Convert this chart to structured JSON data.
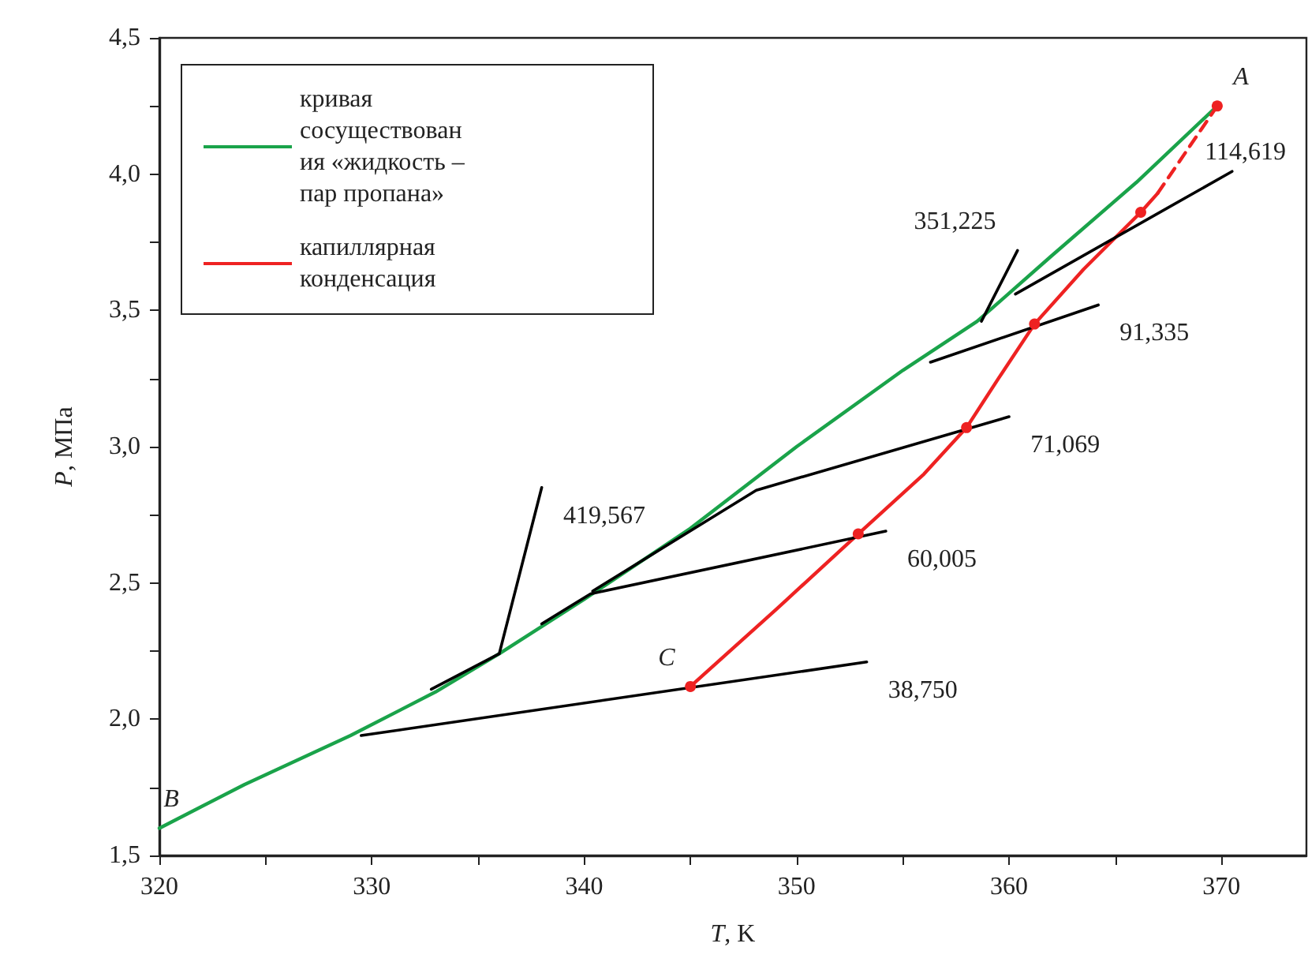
{
  "chart_data": {
    "type": "line",
    "xlabel": "T, K",
    "ylabel": "P, МПа",
    "xlim": [
      320,
      374
    ],
    "ylim": [
      1.5,
      4.5
    ],
    "xticks": [
      320,
      {
        "value": 325,
        "label": null
      },
      330,
      {
        "value": 335,
        "label": null
      },
      340,
      {
        "value": 345,
        "label": null
      },
      350,
      {
        "value": 355,
        "label": null
      },
      360,
      {
        "value": 365,
        "label": null
      },
      370
    ],
    "yticks": [
      {
        "value": 1.5,
        "label": "1,5"
      },
      {
        "value": 1.75,
        "label": null
      },
      {
        "value": 2.0,
        "label": "2,0"
      },
      {
        "value": 2.25,
        "label": null
      },
      {
        "value": 2.5,
        "label": "2,5"
      },
      {
        "value": 2.75,
        "label": null
      },
      {
        "value": 3.0,
        "label": "3,0"
      },
      {
        "value": 3.25,
        "label": null
      },
      {
        "value": 3.5,
        "label": "3,5"
      },
      {
        "value": 3.75,
        "label": null
      },
      {
        "value": 4.0,
        "label": "4,0"
      },
      {
        "value": 4.25,
        "label": null
      },
      {
        "value": 4.5,
        "label": "4,5"
      }
    ],
    "legend": "top left",
    "grid": false,
    "marker": "none",
    "line_style": "solid",
    "series": [
      {
        "name": "кривая сосуществования «жидкость – пар пропана»",
        "color": "#1aa34a",
        "x": [
          320,
          324,
          329,
          333,
          336,
          340,
          345,
          350,
          355,
          358.5,
          362,
          366,
          369.8
        ],
        "values": [
          1.6,
          1.76,
          1.94,
          2.1,
          2.24,
          2.44,
          2.7,
          3.0,
          3.28,
          3.46,
          3.7,
          3.97,
          4.25
        ]
      },
      {
        "name": "капиллярная конденсация",
        "color": "#ee2222",
        "x": [
          345,
          349,
          352.9,
          356,
          358,
          359.5,
          361.2,
          363.5,
          366.2,
          367
        ],
        "values": [
          2.12,
          2.4,
          2.68,
          2.9,
          3.07,
          3.25,
          3.45,
          3.65,
          3.86,
          3.93
        ]
      },
      {
        "color": "#ee2222",
        "line_style": "dashed",
        "x": [
          367,
          369.8
        ],
        "values": [
          3.93,
          4.25
        ]
      },
      {
        "type": "scatter",
        "marker": "circle",
        "color": "#ee2222",
        "x": [
          345,
          352.9,
          358,
          361.2,
          366.2,
          369.8
        ],
        "values": [
          2.12,
          2.68,
          3.07,
          3.45,
          3.86,
          4.25
        ]
      },
      {
        "color": "#000000",
        "x": [
          329.5,
          353.3
        ],
        "values": [
          1.94,
          2.21
        ]
      },
      {
        "color": "#000000",
        "x": [
          332.8,
          336,
          338
        ],
        "values": [
          2.11,
          2.24,
          2.85
        ]
      },
      {
        "color": "#000000",
        "x": [
          338,
          340.3,
          354.2
        ],
        "values": [
          2.35,
          2.46,
          2.69
        ]
      },
      {
        "color": "#000000",
        "x": [
          340.4,
          348.1,
          360
        ],
        "values": [
          2.47,
          2.84,
          3.11
        ]
      },
      {
        "color": "#000000",
        "x": [
          356.3,
          364.2
        ],
        "values": [
          3.31,
          3.52
        ]
      },
      {
        "color": "#000000",
        "x": [
          358.7,
          360.4
        ],
        "values": [
          3.46,
          3.72
        ]
      },
      {
        "color": "#000000",
        "x": [
          360.3,
          370.5
        ],
        "values": [
          3.56,
          4.01
        ]
      }
    ],
    "annotations": [
      {
        "text": "38,750",
        "x": 353.3,
        "y": 2.21
      },
      {
        "text": "60,005",
        "x": 354.2,
        "y": 2.69
      },
      {
        "text": "71,069",
        "x": 360,
        "y": 3.11
      },
      {
        "text": "91,335",
        "x": 364.2,
        "y": 3.52
      },
      {
        "text": "114,619",
        "x": 370.5,
        "y": 4.01
      },
      {
        "text": "351,225",
        "x": 360.4,
        "y": 3.72
      },
      {
        "text": "419,567",
        "x": 338,
        "y": 2.85
      },
      {
        "text": "A",
        "x": 369.8,
        "y": 4.25
      },
      {
        "text": "B",
        "x": 320,
        "y": 1.6
      },
      {
        "text": "C",
        "x": 345,
        "y": 2.12
      }
    ]
  }
}
